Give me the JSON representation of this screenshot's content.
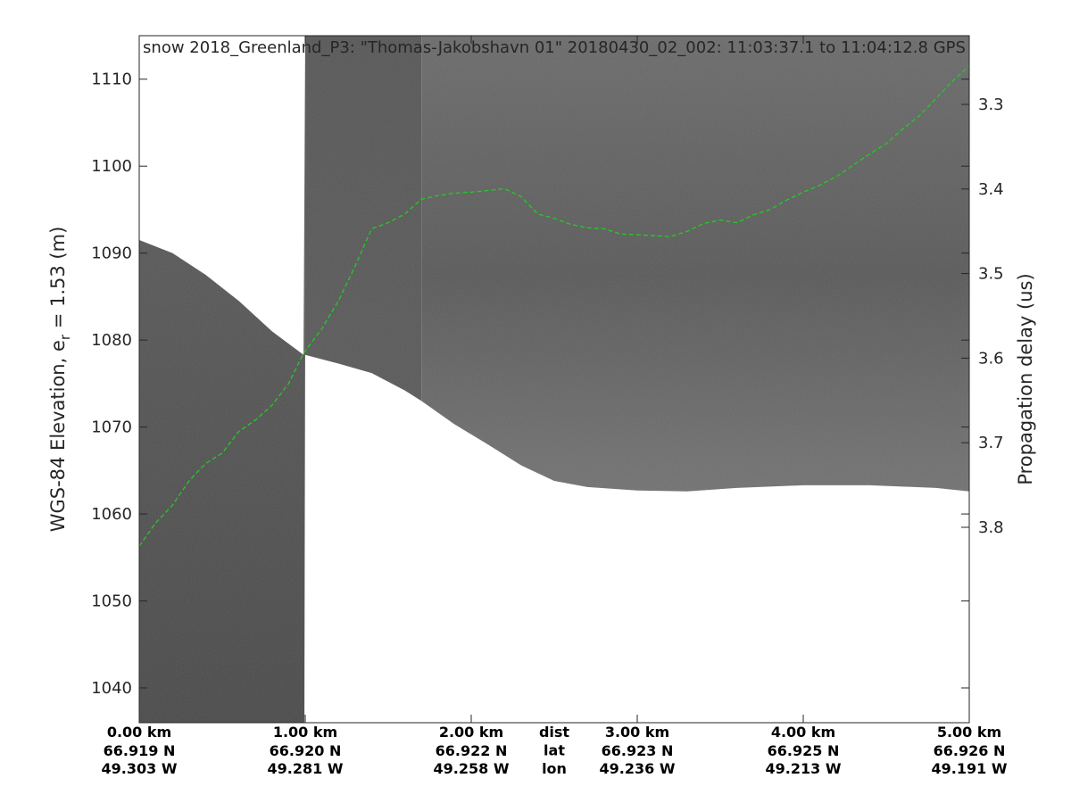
{
  "chart_data": {
    "type": "heatmap",
    "title": "snow 2018_Greenland_P3: \"Thomas-Jakobshavn 01\"  20180430_02_002: 11:03:37.1 to 11:04:12.8 GPS",
    "ylabel_left": "WGS-84 Elevation, e",
    "ylabel_left_sub": "r",
    "ylabel_left_tail": " = 1.53 (m)",
    "ylabel_right": "Propagation delay (us)",
    "xlim_km": [
      0,
      5
    ],
    "ylim_m": [
      1036,
      1115
    ],
    "y_left_ticks": [
      1040,
      1050,
      1060,
      1070,
      1080,
      1090,
      1100,
      1110
    ],
    "y_right_ticks": [
      3.3,
      3.4,
      3.5,
      3.6,
      3.7,
      3.8
    ],
    "x_ticks": [
      {
        "dist": "0.00 km",
        "lat": "66.919 N",
        "lon": "49.303 W"
      },
      {
        "dist": "1.00 km",
        "lat": "66.920 N",
        "lon": "49.281 W"
      },
      {
        "dist": "2.00 km",
        "lat": "66.922 N",
        "lon": "49.258 W"
      },
      {
        "dist": "3.00 km",
        "lat": "66.923 N",
        "lon": "49.236 W"
      },
      {
        "dist": "4.00 km",
        "lat": "66.925 N",
        "lon": "49.213 W"
      },
      {
        "dist": "5.00 km",
        "lat": "66.926 N",
        "lon": "49.191 W"
      }
    ],
    "x_row_labels": [
      "dist",
      "lat",
      "lon"
    ],
    "surface_trace": {
      "color": "#22cc22",
      "style": "dashed",
      "x_km": [
        0.0,
        0.1,
        0.2,
        0.3,
        0.4,
        0.5,
        0.6,
        0.7,
        0.8,
        0.9,
        0.99,
        1.1,
        1.2,
        1.3,
        1.4,
        1.5,
        1.6,
        1.7,
        1.8,
        1.9,
        2.0,
        2.1,
        2.2,
        2.3,
        2.4,
        2.5,
        2.6,
        2.7,
        2.8,
        2.9,
        3.0,
        3.1,
        3.2,
        3.3,
        3.4,
        3.5,
        3.6,
        3.7,
        3.8,
        3.9,
        4.0,
        4.1,
        4.2,
        4.3,
        4.4,
        4.5,
        4.6,
        4.7,
        4.8,
        4.9,
        5.0
      ],
      "elev_m": [
        1056.3,
        1059.0,
        1061.0,
        1063.8,
        1065.8,
        1067.0,
        1069.5,
        1070.8,
        1072.5,
        1075.0,
        1078.5,
        1081.3,
        1084.5,
        1088.5,
        1092.8,
        1093.5,
        1094.5,
        1096.2,
        1096.6,
        1096.9,
        1097.0,
        1097.2,
        1097.4,
        1096.5,
        1094.5,
        1094.0,
        1093.3,
        1092.9,
        1092.8,
        1092.2,
        1092.1,
        1092.0,
        1091.9,
        1092.5,
        1093.4,
        1093.8,
        1093.5,
        1094.4,
        1095.0,
        1096.1,
        1097.0,
        1097.8,
        1098.8,
        1100.1,
        1101.4,
        1102.6,
        1104.3,
        1105.8,
        1107.8,
        1109.8,
        1111.5
      ]
    },
    "data_extent_bottom": {
      "x_km": [
        0.0,
        0.2,
        0.4,
        0.6,
        0.8,
        0.99,
        1.0,
        1.2,
        1.4,
        1.6,
        1.7,
        1.9,
        2.1,
        2.3,
        2.5,
        2.7,
        3.0,
        3.3,
        3.6,
        4.0,
        4.4,
        4.8,
        5.0
      ],
      "elev_m": [
        1036,
        1036,
        1036,
        1036,
        1036,
        1036,
        1078.3,
        1077.3,
        1076.2,
        1074.2,
        1073.0,
        1070.3,
        1068.0,
        1065.6,
        1063.8,
        1063.1,
        1062.7,
        1062.6,
        1063.0,
        1063.3,
        1063.3,
        1063.0,
        1062.6
      ]
    },
    "data_extent_top": {
      "x_km": [
        0.0,
        0.2,
        0.4,
        0.6,
        0.8,
        0.99,
        1.0,
        5.0
      ],
      "elev_m": [
        1091.5,
        1090.0,
        1087.5,
        1084.5,
        1081.0,
        1078.3,
        1115,
        1115
      ]
    }
  }
}
